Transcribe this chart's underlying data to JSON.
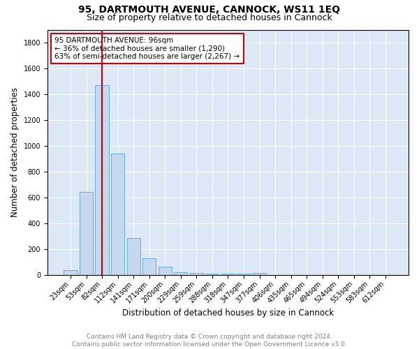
{
  "title": "95, DARTMOUTH AVENUE, CANNOCK, WS11 1EQ",
  "subtitle": "Size of property relative to detached houses in Cannock",
  "xlabel": "Distribution of detached houses by size in Cannock",
  "ylabel": "Number of detached properties",
  "footnote1": "Contains HM Land Registry data © Crown copyright and database right 2024.",
  "footnote2": "Contains public sector information licensed under the Open Government Licence v3.0.",
  "annotation_line1": "95 DARTMOUTH AVENUE: 96sqm",
  "annotation_line2": "← 36% of detached houses are smaller (1,290)",
  "annotation_line3": "63% of semi-detached houses are larger (2,267) →",
  "categories": [
    "23sqm",
    "53sqm",
    "82sqm",
    "112sqm",
    "141sqm",
    "171sqm",
    "200sqm",
    "229sqm",
    "259sqm",
    "288sqm",
    "318sqm",
    "347sqm",
    "377sqm",
    "406sqm",
    "435sqm",
    "465sqm",
    "494sqm",
    "524sqm",
    "553sqm",
    "583sqm",
    "612sqm"
  ],
  "values": [
    37,
    645,
    1470,
    938,
    285,
    128,
    65,
    22,
    15,
    12,
    12,
    12,
    15,
    0,
    0,
    0,
    0,
    0,
    0,
    0,
    0
  ],
  "bar_color": "#c5d8f0",
  "bar_edge_color": "#6baed6",
  "subject_bar_index": 2,
  "vline_color": "#cc0000",
  "annotation_box_color": "#cc0000",
  "ylim": [
    0,
    1900
  ],
  "yticks": [
    0,
    200,
    400,
    600,
    800,
    1000,
    1200,
    1400,
    1600,
    1800
  ],
  "plot_bg": "#dce8f5",
  "grid_color": "#ffffff",
  "title_fontsize": 10,
  "subtitle_fontsize": 9,
  "label_fontsize": 8.5,
  "tick_fontsize": 7,
  "annot_fontsize": 7.5,
  "footnote_fontsize": 6.5
}
